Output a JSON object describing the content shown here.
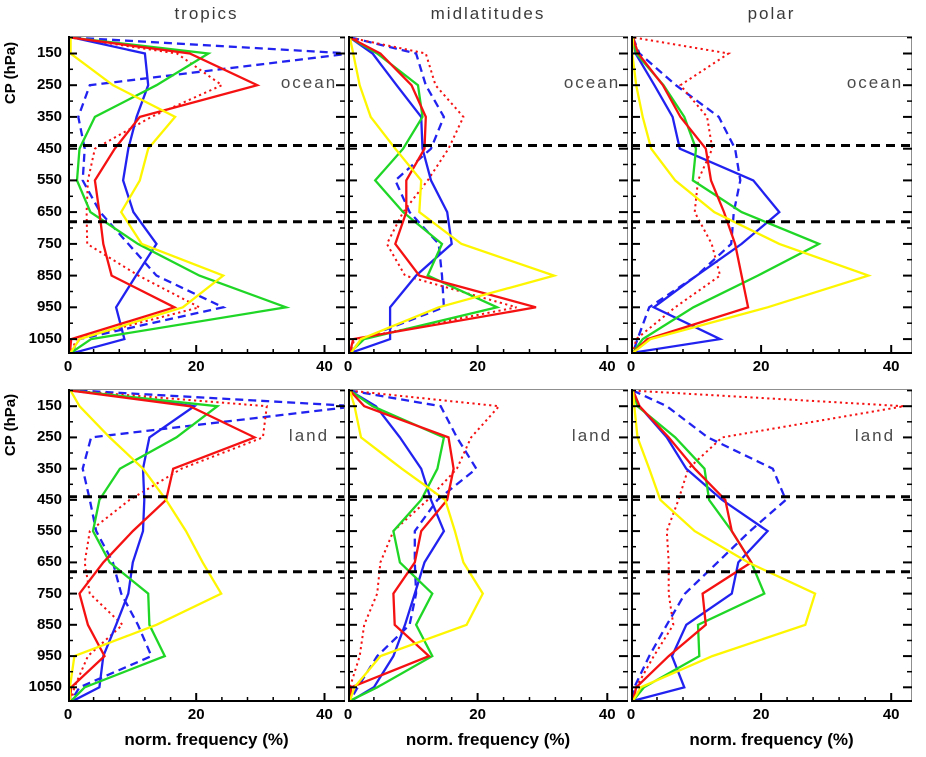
{
  "chart_data": {
    "type": "line",
    "description": "Normalized frequency profiles of cloud pressure (CP) for six panels: columns tropics / midlatitudes / polar, rows ocean / land. Six line series per panel. Horizontal dashed reference lines at 440 hPa and 680 hPa.",
    "columns": [
      "tropics",
      "midlatitudes",
      "polar"
    ],
    "rows": [
      "ocean",
      "land"
    ],
    "xlabel": "norm. frequency (%)",
    "ylabel": "CP (hPa)",
    "x_ticks": [
      0,
      20,
      40
    ],
    "x_minor_step": 4,
    "x_max": 43.2,
    "y_ticks": [
      150,
      250,
      350,
      450,
      550,
      650,
      750,
      850,
      950,
      1050
    ],
    "y_minor_step": 50,
    "p_top": 95,
    "p_bottom": 1097,
    "reference_pressures": [
      440,
      680
    ],
    "pressure_levels": [
      100,
      150,
      250,
      350,
      450,
      550,
      650,
      750,
      850,
      950,
      1050,
      1093
    ],
    "series_styles": {
      "red_solid": {
        "color": "#f51111",
        "dash": "solid"
      },
      "blue_solid": {
        "color": "#2222f0",
        "dash": "solid"
      },
      "green_solid": {
        "color": "#1fd626",
        "dash": "solid"
      },
      "yellow_solid": {
        "color": "#fdf600",
        "dash": "solid"
      },
      "blue_dashed": {
        "color": "#2222f0",
        "dash": "dashed"
      },
      "red_dotted": {
        "color": "#f51111",
        "dash": "dotted"
      }
    },
    "panels": [
      {
        "column": "tropics",
        "label": "ocean",
        "series": {
          "red_solid": [
            0.5,
            19.0,
            29.5,
            11.2,
            7.3,
            4.2,
            4.9,
            5.5,
            6.8,
            16.6,
            0.5,
            0.3
          ],
          "blue_solid": [
            0.8,
            12.0,
            12.5,
            10.7,
            9.4,
            8.6,
            10.2,
            13.8,
            10.6,
            7.5,
            8.8,
            1.0
          ],
          "green_solid": [
            0.5,
            21.9,
            13.8,
            4.2,
            1.8,
            1.4,
            3.5,
            10.9,
            20.5,
            34.0,
            3.6,
            0.5
          ],
          "yellow_solid": [
            0.4,
            0.4,
            7.0,
            16.7,
            12.5,
            11.2,
            8.3,
            11.5,
            24.2,
            17.9,
            1.8,
            0.4
          ],
          "blue_dashed": [
            0.8,
            44.0,
            3.4,
            1.6,
            2.6,
            2.3,
            5.0,
            9.4,
            13.8,
            24.2,
            1.8,
            0.5
          ],
          "red_dotted": [
            0.5,
            17.0,
            24.0,
            13.0,
            4.2,
            3.1,
            2.9,
            3.0,
            11.0,
            20.5,
            1.3,
            0.5
          ]
        }
      },
      {
        "column": "midlatitudes",
        "label": "ocean",
        "series": {
          "red_solid": [
            0.3,
            5.0,
            9.8,
            12.0,
            11.8,
            9.0,
            9.0,
            7.3,
            11.0,
            29.0,
            0.8,
            0.3
          ],
          "blue_solid": [
            0.3,
            3.8,
            7.5,
            11.3,
            11.5,
            12.8,
            15.3,
            16.0,
            10.5,
            6.5,
            6.5,
            0.5
          ],
          "green_solid": [
            0.3,
            4.5,
            10.8,
            11.5,
            8.5,
            4.2,
            8.5,
            14.5,
            12.3,
            23.0,
            2.5,
            0.3
          ],
          "yellow_solid": [
            0.3,
            0.8,
            1.8,
            3.5,
            7.3,
            11.3,
            11.0,
            17.5,
            31.8,
            14.0,
            2.0,
            0.5
          ],
          "blue_dashed": [
            0.5,
            10.5,
            12.0,
            14.8,
            12.8,
            7.3,
            9.5,
            14.0,
            14.5,
            14.8,
            2.0,
            0.5
          ],
          "red_dotted": [
            0.3,
            12.0,
            13.5,
            17.8,
            15.5,
            12.3,
            8.5,
            6.0,
            8.8,
            26.0,
            1.0,
            0.3
          ]
        }
      },
      {
        "column": "polar",
        "label": "ocean",
        "series": {
          "red_solid": [
            0.3,
            1.1,
            4.9,
            7.6,
            11.5,
            12.3,
            14.3,
            16.0,
            17.0,
            18.0,
            2.5,
            0.3
          ],
          "blue_solid": [
            0.3,
            0.7,
            3.6,
            6.4,
            7.5,
            18.8,
            22.8,
            17.0,
            10.1,
            3.5,
            13.7,
            0.3
          ],
          "green_solid": [
            0.3,
            0.8,
            5.0,
            8.2,
            10.0,
            9.5,
            17.0,
            28.9,
            19.5,
            9.6,
            1.8,
            0.3
          ],
          "yellow_solid": [
            0.3,
            0.2,
            0.8,
            1.8,
            3.1,
            6.8,
            12.8,
            22.8,
            36.5,
            21.0,
            3.0,
            0.3
          ],
          "blue_dashed": [
            0.3,
            1.3,
            6.9,
            13.5,
            16.0,
            16.8,
            15.8,
            15.4,
            10.1,
            2.8,
            1.0,
            0.3
          ],
          "red_dotted": [
            0.5,
            15.0,
            7.6,
            11.7,
            12.5,
            10.3,
            9.8,
            12.4,
            13.7,
            6.8,
            0.8,
            0.3
          ]
        }
      },
      {
        "column": "tropics",
        "label": "land",
        "series": {
          "red_solid": [
            0.5,
            19.0,
            29.1,
            16.4,
            15.3,
            10.1,
            5.5,
            1.8,
            3.1,
            5.7,
            0.5,
            0.3
          ],
          "blue_solid": [
            0.8,
            19.7,
            12.7,
            11.7,
            11.9,
            11.7,
            10.1,
            9.4,
            7.5,
            5.5,
            4.9,
            0.8
          ],
          "green_solid": [
            0.5,
            23.3,
            16.9,
            8.1,
            4.9,
            3.9,
            6.5,
            12.5,
            12.7,
            15.1,
            2.6,
            0.5
          ],
          "yellow_solid": [
            0.4,
            1.8,
            6.5,
            11.7,
            15.3,
            18.4,
            21.0,
            23.9,
            13.8,
            1.0,
            0.3,
            0.3
          ],
          "blue_dashed": [
            1.8,
            45.0,
            3.6,
            2.3,
            3.4,
            4.4,
            7.0,
            8.3,
            10.9,
            13.0,
            1.8,
            0.5
          ],
          "red_dotted": [
            0.5,
            31.0,
            30.4,
            17.7,
            9.6,
            3.4,
            2.6,
            3.4,
            8.5,
            3.1,
            1.0,
            0.5
          ]
        }
      },
      {
        "column": "midlatitudes",
        "label": "land",
        "series": {
          "red_solid": [
            0.3,
            2.5,
            15.5,
            16.3,
            15.3,
            11.3,
            10.3,
            7.0,
            7.2,
            12.5,
            0.5,
            0.3
          ],
          "blue_solid": [
            0.3,
            4.3,
            8.0,
            11.3,
            12.8,
            14.8,
            11.8,
            10.3,
            8.8,
            7.0,
            4.0,
            0.5
          ],
          "green_solid": [
            0.3,
            3.8,
            14.8,
            13.8,
            11.3,
            7.0,
            8.0,
            13.0,
            10.5,
            13.0,
            4.5,
            0.3
          ],
          "yellow_solid": [
            0.3,
            1.0,
            2.0,
            8.3,
            15.0,
            16.5,
            17.8,
            20.8,
            18.3,
            5.0,
            1.0,
            0.3
          ],
          "blue_dashed": [
            0.3,
            14.3,
            16.8,
            19.8,
            13.8,
            10.3,
            10.3,
            10.5,
            9.5,
            4.5,
            1.5,
            0.3
          ],
          "red_dotted": [
            0.3,
            23.3,
            19.0,
            16.8,
            12.3,
            7.0,
            5.0,
            4.5,
            2.5,
            1.8,
            0.3,
            0.3
          ]
        }
      },
      {
        "column": "polar",
        "label": "land",
        "series": {
          "red_solid": [
            0.3,
            1.3,
            5.8,
            9.8,
            14.5,
            15.5,
            18.5,
            11.0,
            11.5,
            5.8,
            0.8,
            0.3
          ],
          "blue_solid": [
            0.3,
            1.3,
            5.5,
            8.5,
            14.0,
            21.0,
            16.5,
            15.5,
            8.5,
            6.3,
            8.2,
            0.3
          ],
          "green_solid": [
            0.3,
            1.0,
            6.8,
            11.3,
            12.0,
            15.5,
            18.5,
            20.5,
            10.3,
            10.5,
            2.0,
            0.3
          ],
          "yellow_solid": [
            0.3,
            0.5,
            1.0,
            2.8,
            4.5,
            9.8,
            18.0,
            28.3,
            26.8,
            12.5,
            1.5,
            0.3
          ],
          "blue_dashed": [
            0.3,
            5.5,
            11.8,
            21.8,
            23.8,
            18.3,
            13.3,
            8.3,
            5.5,
            2.8,
            0.5,
            0.3
          ],
          "red_dotted": [
            0.3,
            42.0,
            14.0,
            8.8,
            7.3,
            5.5,
            5.8,
            5.8,
            6.5,
            3.5,
            0.8,
            0.3
          ]
        }
      }
    ],
    "frame_color": "#8f8f8f",
    "axis_color": "#000000",
    "label_color": "#4a4a4a"
  }
}
